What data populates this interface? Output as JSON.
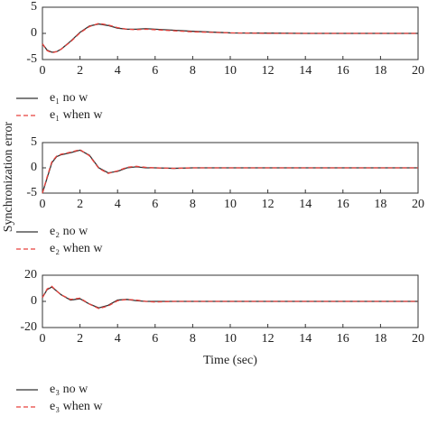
{
  "chart_data": [
    {
      "type": "line",
      "x": [
        0,
        0.25,
        0.5,
        0.75,
        1,
        1.5,
        2,
        2.5,
        3,
        3.5,
        4,
        4.5,
        5,
        5.5,
        6,
        7,
        8,
        10,
        12,
        14,
        16,
        18,
        20
      ],
      "series": [
        {
          "name": "e₁ no w",
          "color": "#333333",
          "linestyle": "solid",
          "values": [
            -2,
            -3.2,
            -3.6,
            -3.5,
            -3.0,
            -1.5,
            0.2,
            1.4,
            1.8,
            1.5,
            1.0,
            0.8,
            0.8,
            0.9,
            0.8,
            0.6,
            0.4,
            0.1,
            0.05,
            0,
            0,
            0,
            0
          ]
        },
        {
          "name": "e₁ when w",
          "color": "#e8413c",
          "linestyle": "dashed",
          "values": [
            -2,
            -3.3,
            -3.7,
            -3.5,
            -3.0,
            -1.6,
            0.1,
            1.3,
            1.9,
            1.6,
            1.1,
            0.8,
            0.7,
            0.8,
            0.7,
            0.5,
            0.3,
            0.1,
            0,
            0,
            0,
            0,
            0
          ]
        }
      ],
      "xlim": [
        0,
        20
      ],
      "xticks": [
        0,
        2,
        4,
        6,
        8,
        10,
        12,
        14,
        16,
        18,
        20
      ],
      "ylim": [
        -5,
        5
      ],
      "yticks": [
        -5,
        0,
        5
      ]
    },
    {
      "type": "line",
      "ylabel": "Synchronization error",
      "x": [
        0,
        0.25,
        0.5,
        0.75,
        1,
        1.5,
        2,
        2.5,
        3,
        3.5,
        4,
        4.5,
        5,
        5.5,
        6,
        7,
        8,
        10,
        12,
        14,
        16,
        18,
        20
      ],
      "series": [
        {
          "name": "e₂ no w",
          "color": "#333333",
          "linestyle": "solid",
          "values": [
            -5,
            -2,
            1,
            2.2,
            2.6,
            3.0,
            3.5,
            2.5,
            0,
            -1.0,
            -0.7,
            0,
            0.2,
            0,
            0,
            -0.1,
            0,
            0,
            0,
            0,
            0,
            0,
            0
          ]
        },
        {
          "name": "e₂ when w",
          "color": "#e8413c",
          "linestyle": "dashed",
          "values": [
            -5,
            -1.8,
            1.2,
            2.3,
            2.7,
            3.1,
            3.6,
            2.4,
            -0.1,
            -1.1,
            -0.6,
            0.1,
            0.3,
            0.1,
            0,
            -0.1,
            0,
            0,
            0,
            0,
            0,
            0,
            0
          ]
        }
      ],
      "xlim": [
        0,
        20
      ],
      "xticks": [
        0,
        2,
        4,
        6,
        8,
        10,
        12,
        14,
        16,
        18,
        20
      ],
      "ylim": [
        -5,
        5
      ],
      "yticks": [
        -5,
        0,
        5
      ]
    },
    {
      "type": "line",
      "xlabel": "Time (sec)",
      "x": [
        0,
        0.25,
        0.5,
        0.75,
        1,
        1.5,
        2,
        2.5,
        3,
        3.5,
        4,
        4.5,
        5,
        5.5,
        6,
        7,
        8,
        10,
        12,
        14,
        16,
        18,
        20
      ],
      "series": [
        {
          "name": "e₃ no w",
          "color": "#333333",
          "linestyle": "solid",
          "values": [
            3,
            9,
            11,
            8,
            5,
            1,
            2,
            -2,
            -5,
            -3,
            1,
            1.5,
            0.5,
            0,
            0,
            0,
            0,
            0,
            0,
            0,
            0,
            0,
            0
          ]
        },
        {
          "name": "e₃ when w",
          "color": "#e8413c",
          "linestyle": "dashed",
          "values": [
            3,
            9.5,
            11.5,
            8,
            5,
            1.5,
            2.5,
            -2,
            -5.5,
            -3.5,
            0.5,
            1.5,
            1,
            0,
            -0.5,
            0,
            0,
            0,
            0,
            0,
            0,
            0,
            0
          ]
        }
      ],
      "xlim": [
        0,
        20
      ],
      "xticks": [
        0,
        2,
        4,
        6,
        8,
        10,
        12,
        14,
        16,
        18,
        20
      ],
      "ylim": [
        -20,
        20
      ],
      "yticks": [
        -20,
        0,
        20
      ]
    }
  ]
}
